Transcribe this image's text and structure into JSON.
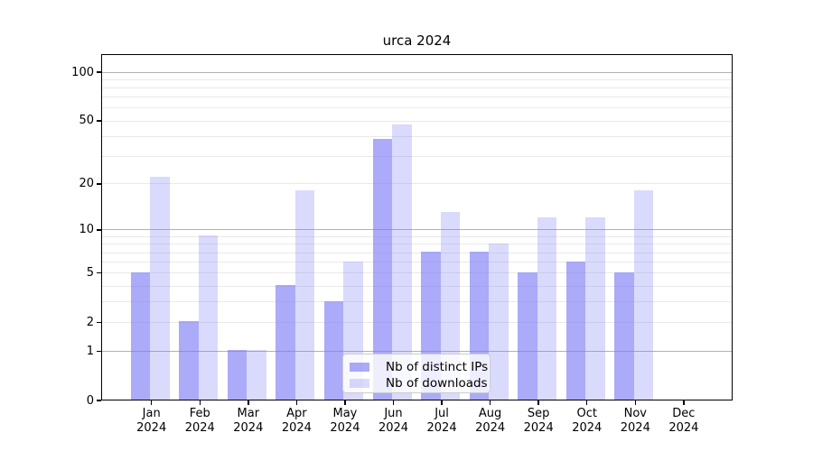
{
  "title": "urca 2024",
  "chart_data": {
    "type": "bar",
    "title": "urca 2024",
    "categories": [
      "Jan 2024",
      "Feb 2024",
      "Mar 2024",
      "Apr 2024",
      "May 2024",
      "Jun 2024",
      "Jul 2024",
      "Aug 2024",
      "Sep 2024",
      "Oct 2024",
      "Nov 2024",
      "Dec 2024"
    ],
    "x_tick_months": [
      "Jan",
      "Feb",
      "Mar",
      "Apr",
      "May",
      "Jun",
      "Jul",
      "Aug",
      "Sep",
      "Oct",
      "Nov",
      "Dec"
    ],
    "x_tick_year": "2024",
    "series": [
      {
        "name": "Nb of distinct IPs",
        "color": "rgba(120,120,245,0.62)",
        "values": [
          5,
          2,
          1,
          4,
          3,
          38,
          7,
          7,
          5,
          6,
          5,
          0
        ]
      },
      {
        "name": "Nb of downloads",
        "color": "rgba(120,120,245,0.27)",
        "values": [
          22,
          9,
          1,
          18,
          6,
          47,
          13,
          8,
          12,
          12,
          18,
          0
        ]
      }
    ],
    "y_axis": {
      "scale": "log10(1+value)",
      "tick_labels": [
        0,
        1,
        2,
        5,
        10,
        20,
        50,
        100
      ],
      "major_gridlines": [
        1,
        10,
        100
      ],
      "minor_gridlines": [
        2,
        3,
        4,
        5,
        6,
        7,
        8,
        9,
        20,
        30,
        40,
        50,
        60,
        70,
        80,
        90
      ],
      "ylim": [
        0,
        130
      ]
    },
    "legend": {
      "position": "lower-center",
      "entries": [
        "Nb of distinct IPs",
        "Nb of downloads"
      ]
    },
    "style_colors": {
      "bar_dark": "rgba(120,120,245,0.62)",
      "bar_light": "rgba(120,120,245,0.27)",
      "major_grid": "#b2b2b2",
      "minor_grid": "#e9e9e9",
      "spine": "#000000",
      "background": "#ffffff"
    }
  }
}
